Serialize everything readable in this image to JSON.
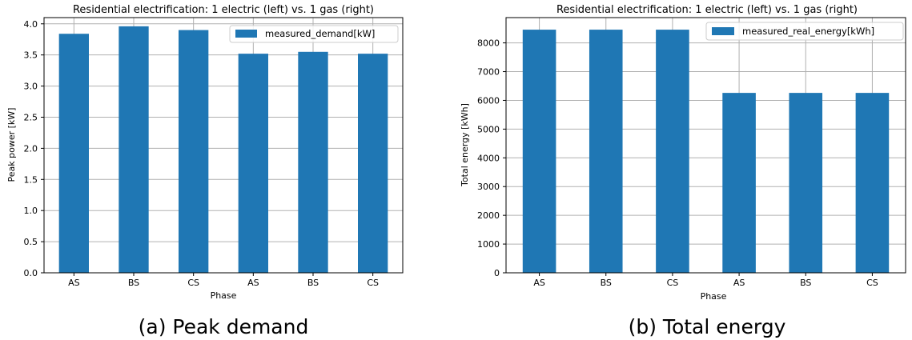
{
  "colors": {
    "bar": "#1f77b4",
    "grid": "#b0b0b0",
    "legend_border": "#cccccc"
  },
  "chart_data": [
    {
      "type": "bar",
      "title": "Residential electrification: 1 electric (left) vs. 1 gas (right)",
      "xlabel": "Phase",
      "ylabel": "Peak power [kW]",
      "categories": [
        "AS",
        "BS",
        "CS",
        "AS",
        "BS",
        "CS"
      ],
      "series": [
        {
          "name": "measured_demand[kW]",
          "values": [
            3.84,
            3.96,
            3.9,
            3.52,
            3.55,
            3.52
          ]
        }
      ],
      "ylim": [
        0,
        4.1
      ],
      "yticks": [
        0.0,
        0.5,
        1.0,
        1.5,
        2.0,
        2.5,
        3.0,
        3.5,
        4.0
      ],
      "ytick_labels": [
        "0.0",
        "0.5",
        "1.0",
        "1.5",
        "2.0",
        "2.5",
        "3.0",
        "3.5",
        "4.0"
      ],
      "grid": true,
      "legend": "top-right",
      "caption": "(a) Peak demand"
    },
    {
      "type": "bar",
      "title": "Residential electrification: 1 electric (left) vs. 1 gas (right)",
      "xlabel": "Phase",
      "ylabel": "Total energy [kWh]",
      "categories": [
        "AS",
        "BS",
        "CS",
        "AS",
        "BS",
        "CS"
      ],
      "series": [
        {
          "name": "measured_real_energy[kWh]",
          "values": [
            8460,
            8460,
            8460,
            6260,
            6260,
            6260
          ]
        }
      ],
      "ylim": [
        0,
        8880
      ],
      "yticks": [
        0,
        1000,
        2000,
        3000,
        4000,
        5000,
        6000,
        7000,
        8000
      ],
      "ytick_labels": [
        "0",
        "1000",
        "2000",
        "3000",
        "4000",
        "5000",
        "6000",
        "7000",
        "8000"
      ],
      "grid": true,
      "legend": "top-right",
      "caption": "(b) Total energy"
    }
  ]
}
